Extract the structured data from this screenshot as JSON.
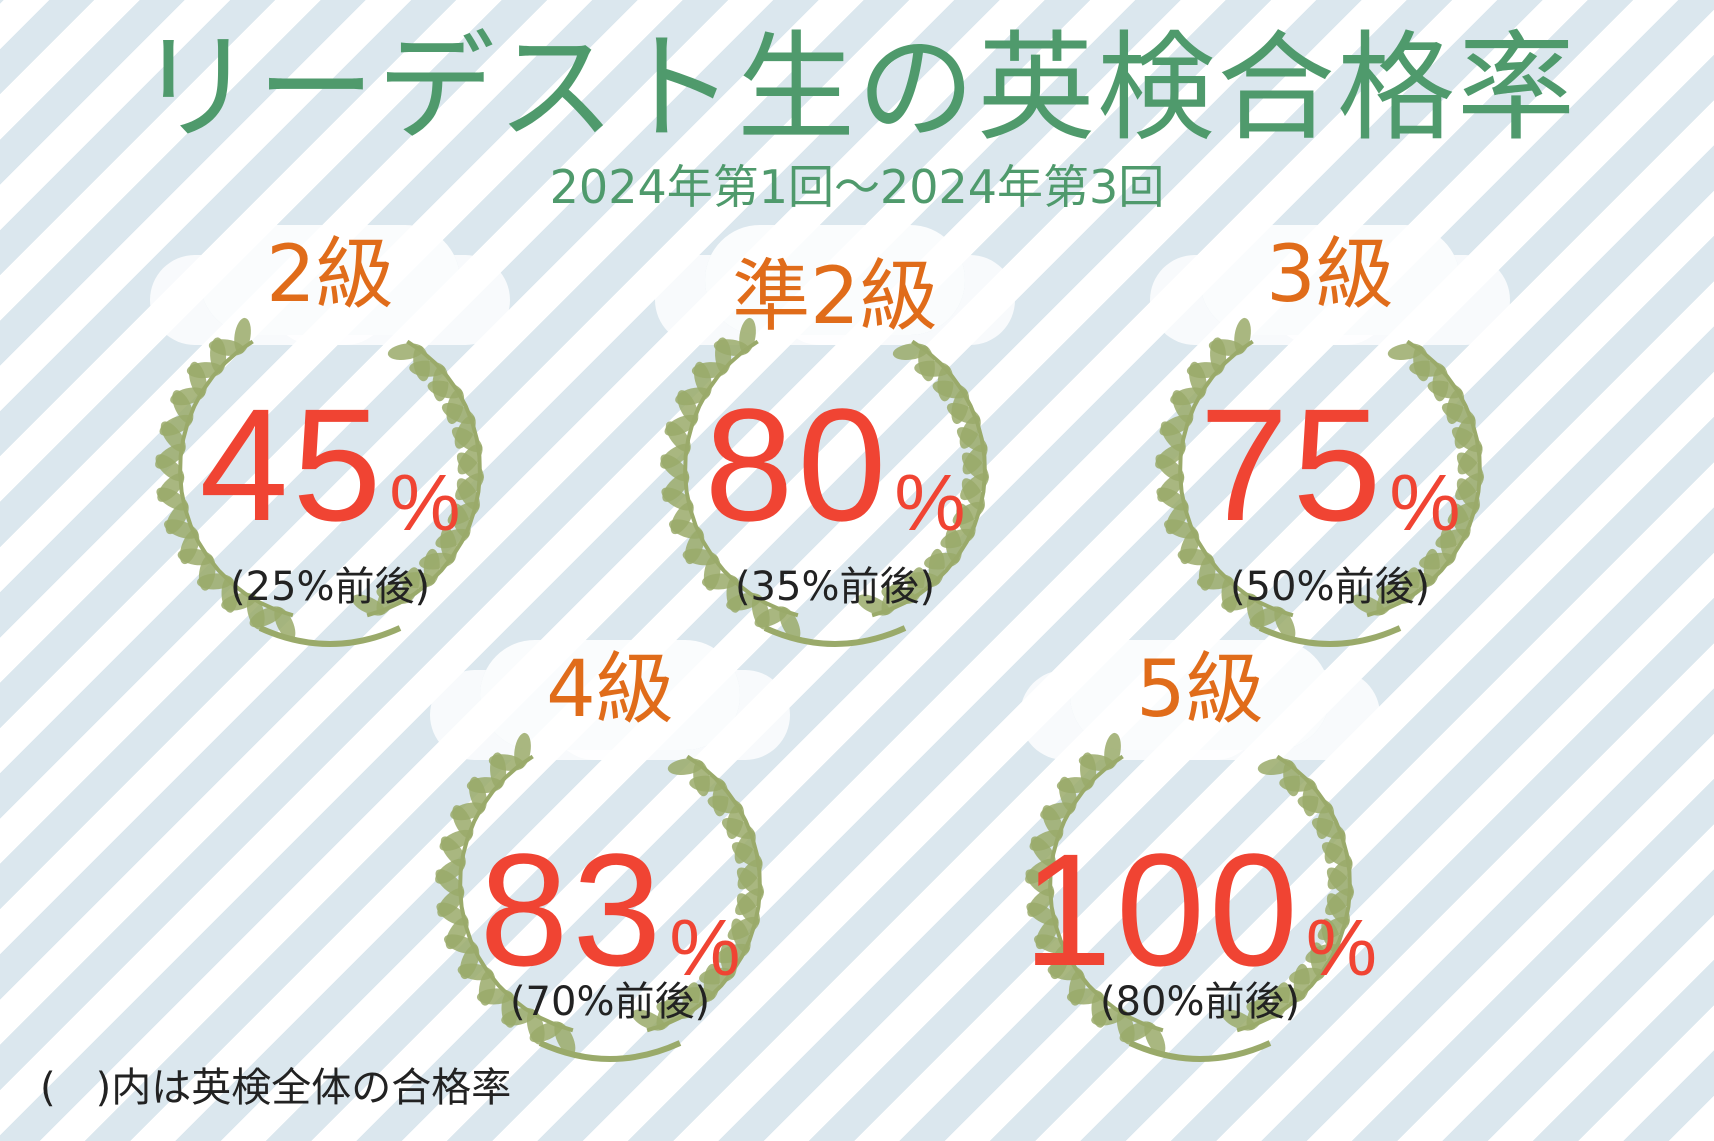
{
  "title": "リーデスト生の英検合格率",
  "subtitle": "2024年第1回〜2024年第3回",
  "grades": [
    {
      "grade": "2級",
      "rate": "45",
      "unit": "%",
      "overall": "(25%前後)",
      "rate_value": 45
    },
    {
      "grade": "準2級",
      "rate": "80",
      "unit": "%",
      "overall": "(35%前後)",
      "rate_value": 80
    },
    {
      "grade": "3級",
      "rate": "75",
      "unit": "%",
      "overall": "(50%前後)",
      "rate_value": 75
    },
    {
      "grade": "4級",
      "rate": "83",
      "unit": "%",
      "overall": "(70%前後)",
      "rate_value": 83
    },
    {
      "grade": "5級",
      "rate": "100",
      "unit": "%",
      "overall": "(80%前後)",
      "rate_value": 100
    }
  ],
  "note": "(　)内は英検全体の合格率",
  "colors": {
    "title": "#4f9a6c",
    "grade": "#e06c1a",
    "rate": "#f04433",
    "wreath": "#9aaa6a",
    "stripe": "#dbe7ee"
  }
}
